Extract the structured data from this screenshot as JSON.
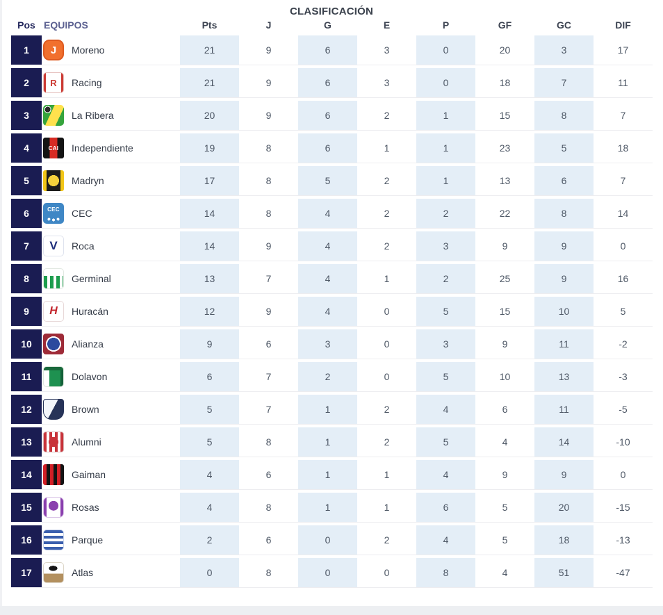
{
  "title": "CLASIFICACIÓN",
  "columns": {
    "pos": "Pos",
    "equipos": "EQUIPOS",
    "stats": [
      "Pts",
      "J",
      "G",
      "E",
      "P",
      "GF",
      "GC",
      "DIF"
    ]
  },
  "colors": {
    "position_badge": "#1a1c52",
    "shaded_column": "#e4eef7",
    "header_pos": "#23275c",
    "header_equipos": "#5c6191",
    "stat_text": "#4d5765",
    "row_divider": "#ededf0"
  },
  "rows": [
    {
      "pos": "1",
      "team": "Moreno",
      "logo": "moreno",
      "logo_text": "J",
      "pts": "21",
      "j": "9",
      "g": "6",
      "e": "3",
      "p": "0",
      "gf": "20",
      "gc": "3",
      "dif": "17"
    },
    {
      "pos": "2",
      "team": "Racing",
      "logo": "racing",
      "logo_text": "R",
      "pts": "21",
      "j": "9",
      "g": "6",
      "e": "3",
      "p": "0",
      "gf": "18",
      "gc": "7",
      "dif": "11"
    },
    {
      "pos": "3",
      "team": "La Ribera",
      "logo": "la-ribera",
      "logo_text": "",
      "pts": "20",
      "j": "9",
      "g": "6",
      "e": "2",
      "p": "1",
      "gf": "15",
      "gc": "8",
      "dif": "7"
    },
    {
      "pos": "4",
      "team": "Independiente",
      "logo": "independiente",
      "logo_text": "CAI",
      "pts": "19",
      "j": "8",
      "g": "6",
      "e": "1",
      "p": "1",
      "gf": "23",
      "gc": "5",
      "dif": "18"
    },
    {
      "pos": "5",
      "team": "Madryn",
      "logo": "madryn",
      "logo_text": "",
      "pts": "17",
      "j": "8",
      "g": "5",
      "e": "2",
      "p": "1",
      "gf": "13",
      "gc": "6",
      "dif": "7"
    },
    {
      "pos": "6",
      "team": "CEC",
      "logo": "cec",
      "logo_text": "CEC",
      "pts": "14",
      "j": "8",
      "g": "4",
      "e": "2",
      "p": "2",
      "gf": "22",
      "gc": "8",
      "dif": "14"
    },
    {
      "pos": "7",
      "team": "Roca",
      "logo": "roca",
      "logo_text": "V",
      "pts": "14",
      "j": "9",
      "g": "4",
      "e": "2",
      "p": "3",
      "gf": "9",
      "gc": "9",
      "dif": "0"
    },
    {
      "pos": "8",
      "team": "Germinal",
      "logo": "germinal",
      "logo_text": "",
      "pts": "13",
      "j": "7",
      "g": "4",
      "e": "1",
      "p": "2",
      "gf": "25",
      "gc": "9",
      "dif": "16"
    },
    {
      "pos": "9",
      "team": "Huracán",
      "logo": "huracan",
      "logo_text": "H",
      "pts": "12",
      "j": "9",
      "g": "4",
      "e": "0",
      "p": "5",
      "gf": "15",
      "gc": "10",
      "dif": "5"
    },
    {
      "pos": "10",
      "team": "Alianza",
      "logo": "alianza",
      "logo_text": "",
      "pts": "9",
      "j": "6",
      "g": "3",
      "e": "0",
      "p": "3",
      "gf": "9",
      "gc": "11",
      "dif": "-2"
    },
    {
      "pos": "11",
      "team": "Dolavon",
      "logo": "dolavon",
      "logo_text": "",
      "pts": "6",
      "j": "7",
      "g": "2",
      "e": "0",
      "p": "5",
      "gf": "10",
      "gc": "13",
      "dif": "-3"
    },
    {
      "pos": "12",
      "team": "Brown",
      "logo": "brown",
      "logo_text": "",
      "pts": "5",
      "j": "7",
      "g": "1",
      "e": "2",
      "p": "4",
      "gf": "6",
      "gc": "11",
      "dif": "-5"
    },
    {
      "pos": "13",
      "team": "Alumni",
      "logo": "alumni",
      "logo_text": "",
      "pts": "5",
      "j": "8",
      "g": "1",
      "e": "2",
      "p": "5",
      "gf": "4",
      "gc": "14",
      "dif": "-10"
    },
    {
      "pos": "14",
      "team": "Gaiman",
      "logo": "gaiman",
      "logo_text": "",
      "pts": "4",
      "j": "6",
      "g": "1",
      "e": "1",
      "p": "4",
      "gf": "9",
      "gc": "9",
      "dif": "0"
    },
    {
      "pos": "15",
      "team": "Rosas",
      "logo": "rosas",
      "logo_text": "",
      "pts": "4",
      "j": "8",
      "g": "1",
      "e": "1",
      "p": "6",
      "gf": "5",
      "gc": "20",
      "dif": "-15"
    },
    {
      "pos": "16",
      "team": "Parque",
      "logo": "parque",
      "logo_text": "",
      "pts": "2",
      "j": "6",
      "g": "0",
      "e": "2",
      "p": "4",
      "gf": "5",
      "gc": "18",
      "dif": "-13"
    },
    {
      "pos": "17",
      "team": "Atlas",
      "logo": "atlas",
      "logo_text": "",
      "pts": "0",
      "j": "8",
      "g": "0",
      "e": "0",
      "p": "8",
      "gf": "4",
      "gc": "51",
      "dif": "-47"
    }
  ]
}
